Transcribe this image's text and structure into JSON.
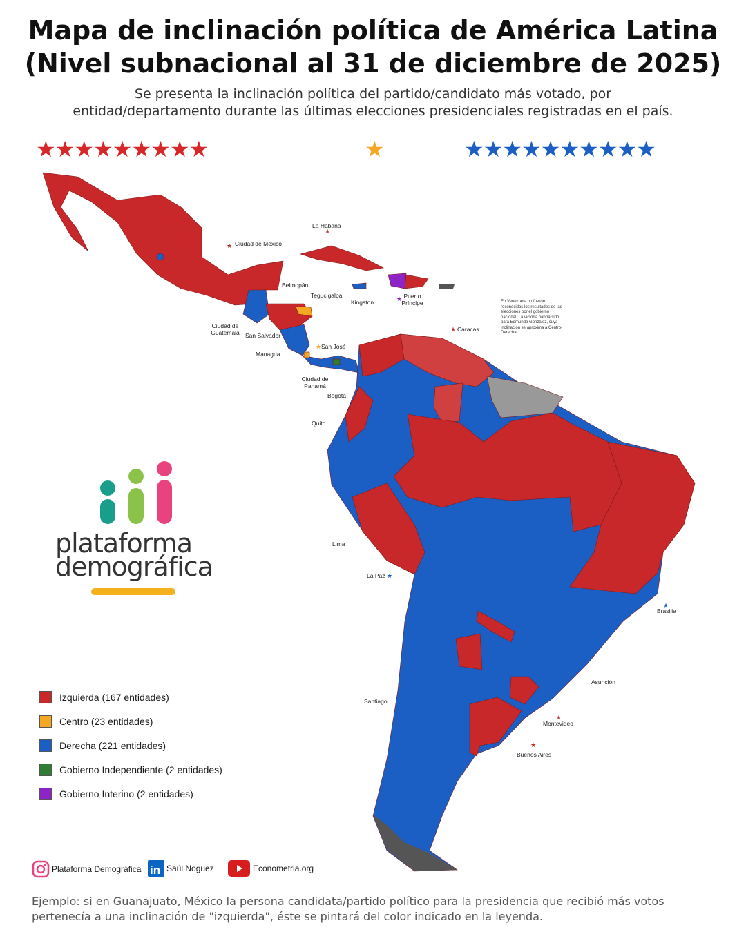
{
  "header": {
    "title_line1": "Mapa de inclinación política de América Latina",
    "title_line2": "(Nivel subnacional al 31 de diciembre de 2025)",
    "subtitle_line1": "Se presenta la inclinación política del partido/candidato más votado, por",
    "subtitle_line2": "entidad/departamento durante las últimas elecciones presidenciales registradas en el país.",
    "stars_left": "★★★★★★★★★",
    "stars_mid": "★",
    "stars_right": "★★★★★★★★★★"
  },
  "colors": {
    "izquierda": "#c8282a",
    "centro": "#f5a623",
    "derecha": "#1c5fc4",
    "independiente": "#2e7d32",
    "interino": "#8e24c8",
    "sin_datos": "#999999"
  },
  "cities": {
    "cdmx": "Ciudad de México",
    "habana": "La Habana",
    "belmopan": "Belmopán",
    "tegucigalpa": "Tegucigalpa",
    "kingston": "Kingston",
    "puerto_principe": "Puerto Príncipe",
    "guatemala": "Ciudad de Guatemala",
    "san_salvador": "San Salvador",
    "managua": "Managua",
    "san_jose": "San José",
    "caracas": "Caracas",
    "panama": "Ciudad de Panamá",
    "bogota": "Bogotá",
    "quito": "Quito",
    "lima": "Lima",
    "la_paz": "La Paz",
    "brasilia": "Brasilia",
    "asuncion": "Asunción",
    "santiago": "Santiago",
    "montevideo": "Montevideo",
    "buenos_aires": "Buenos Aires"
  },
  "venezuela_note": "En Venezuela no fueron reconocidos los resultados de las elecciones por el gobierno nacional; La victoria habría sido para Edmundo González, cuya inclinación se aproxima a Centro-Derecha.",
  "logo": {
    "line1": "plataforma",
    "line2": "demográfica"
  },
  "legend": [
    {
      "label": "Izquierda (167 entidades)",
      "color": "#c8282a"
    },
    {
      "label": "Centro (23 entidades)",
      "color": "#f5a623"
    },
    {
      "label": "Derecha (221 entidades)",
      "color": "#1c5fc4"
    },
    {
      "label": "Gobierno Independiente (2 entidades)",
      "color": "#2e7d32"
    },
    {
      "label": "Gobierno Interino (2 entidades)",
      "color": "#8e24c8"
    }
  ],
  "social": {
    "instagram": "Plataforma Demográfica",
    "linkedin": "Saúl Noguez",
    "youtube": "Econometria.org"
  },
  "footer": "Ejemplo: si en Guanajuato, México la persona candidata/partido político para la presidencia que recibió más votos pertenecía a una inclinación de \"izquierda\", éste se pintará del color indicado en la leyenda."
}
